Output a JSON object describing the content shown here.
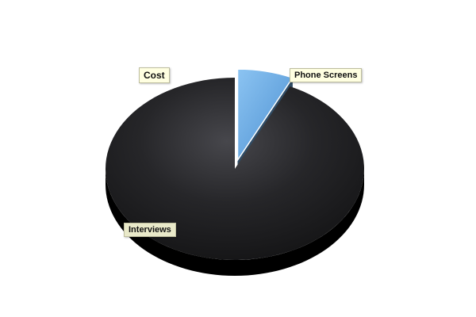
{
  "chart_data": {
    "type": "pie",
    "title": "Cost",
    "slices": [
      {
        "label": "Phone Screens",
        "value": 7,
        "color": "#6aa8e0",
        "exploded": true
      },
      {
        "label": "Interviews",
        "value": 93,
        "color": "#1a1a1a",
        "exploded": false
      }
    ],
    "style": "3d"
  }
}
